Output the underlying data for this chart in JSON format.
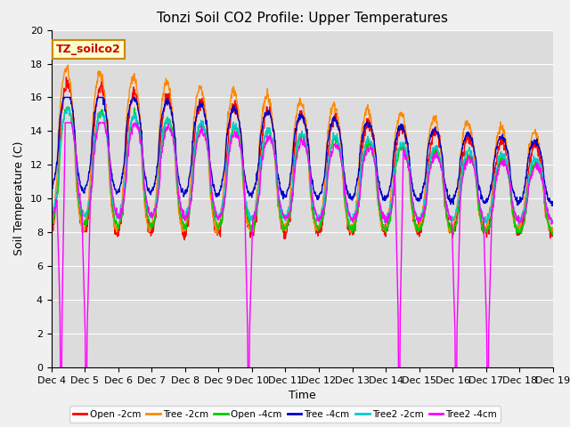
{
  "title": "Tonzi Soil CO2 Profile: Upper Temperatures",
  "xlabel": "Time",
  "ylabel": "Soil Temperature (C)",
  "annotation": "TZ_soilco2",
  "ylim": [
    0,
    20
  ],
  "xlim": [
    0,
    15
  ],
  "x_tick_labels": [
    "Dec 4",
    "Dec 5",
    "Dec 6",
    "Dec 7",
    "Dec 8",
    "Dec 9",
    "Dec 10",
    "Dec 11",
    "Dec 12",
    "Dec 13",
    "Dec 14",
    "Dec 15",
    "Dec 16",
    "Dec 17",
    "Dec 18",
    "Dec 19"
  ],
  "legend_labels": [
    "Open -2cm",
    "Tree -2cm",
    "Open -4cm",
    "Tree -4cm",
    "Tree2 -2cm",
    "Tree2 -4cm"
  ],
  "legend_colors": [
    "#ff0000",
    "#ff8800",
    "#00cc00",
    "#0000cc",
    "#00cccc",
    "#ff00ff"
  ],
  "background_color": "#dcdcdc",
  "fig_color": "#f0f0f0",
  "grid_color": "#ffffff",
  "title_fontsize": 11,
  "axis_fontsize": 9,
  "tick_fontsize": 8,
  "magenta_spike_positions": [
    0.3,
    1.05,
    5.9,
    10.4,
    12.1,
    13.05
  ],
  "n_days": 15,
  "n_points_per_day": 96
}
